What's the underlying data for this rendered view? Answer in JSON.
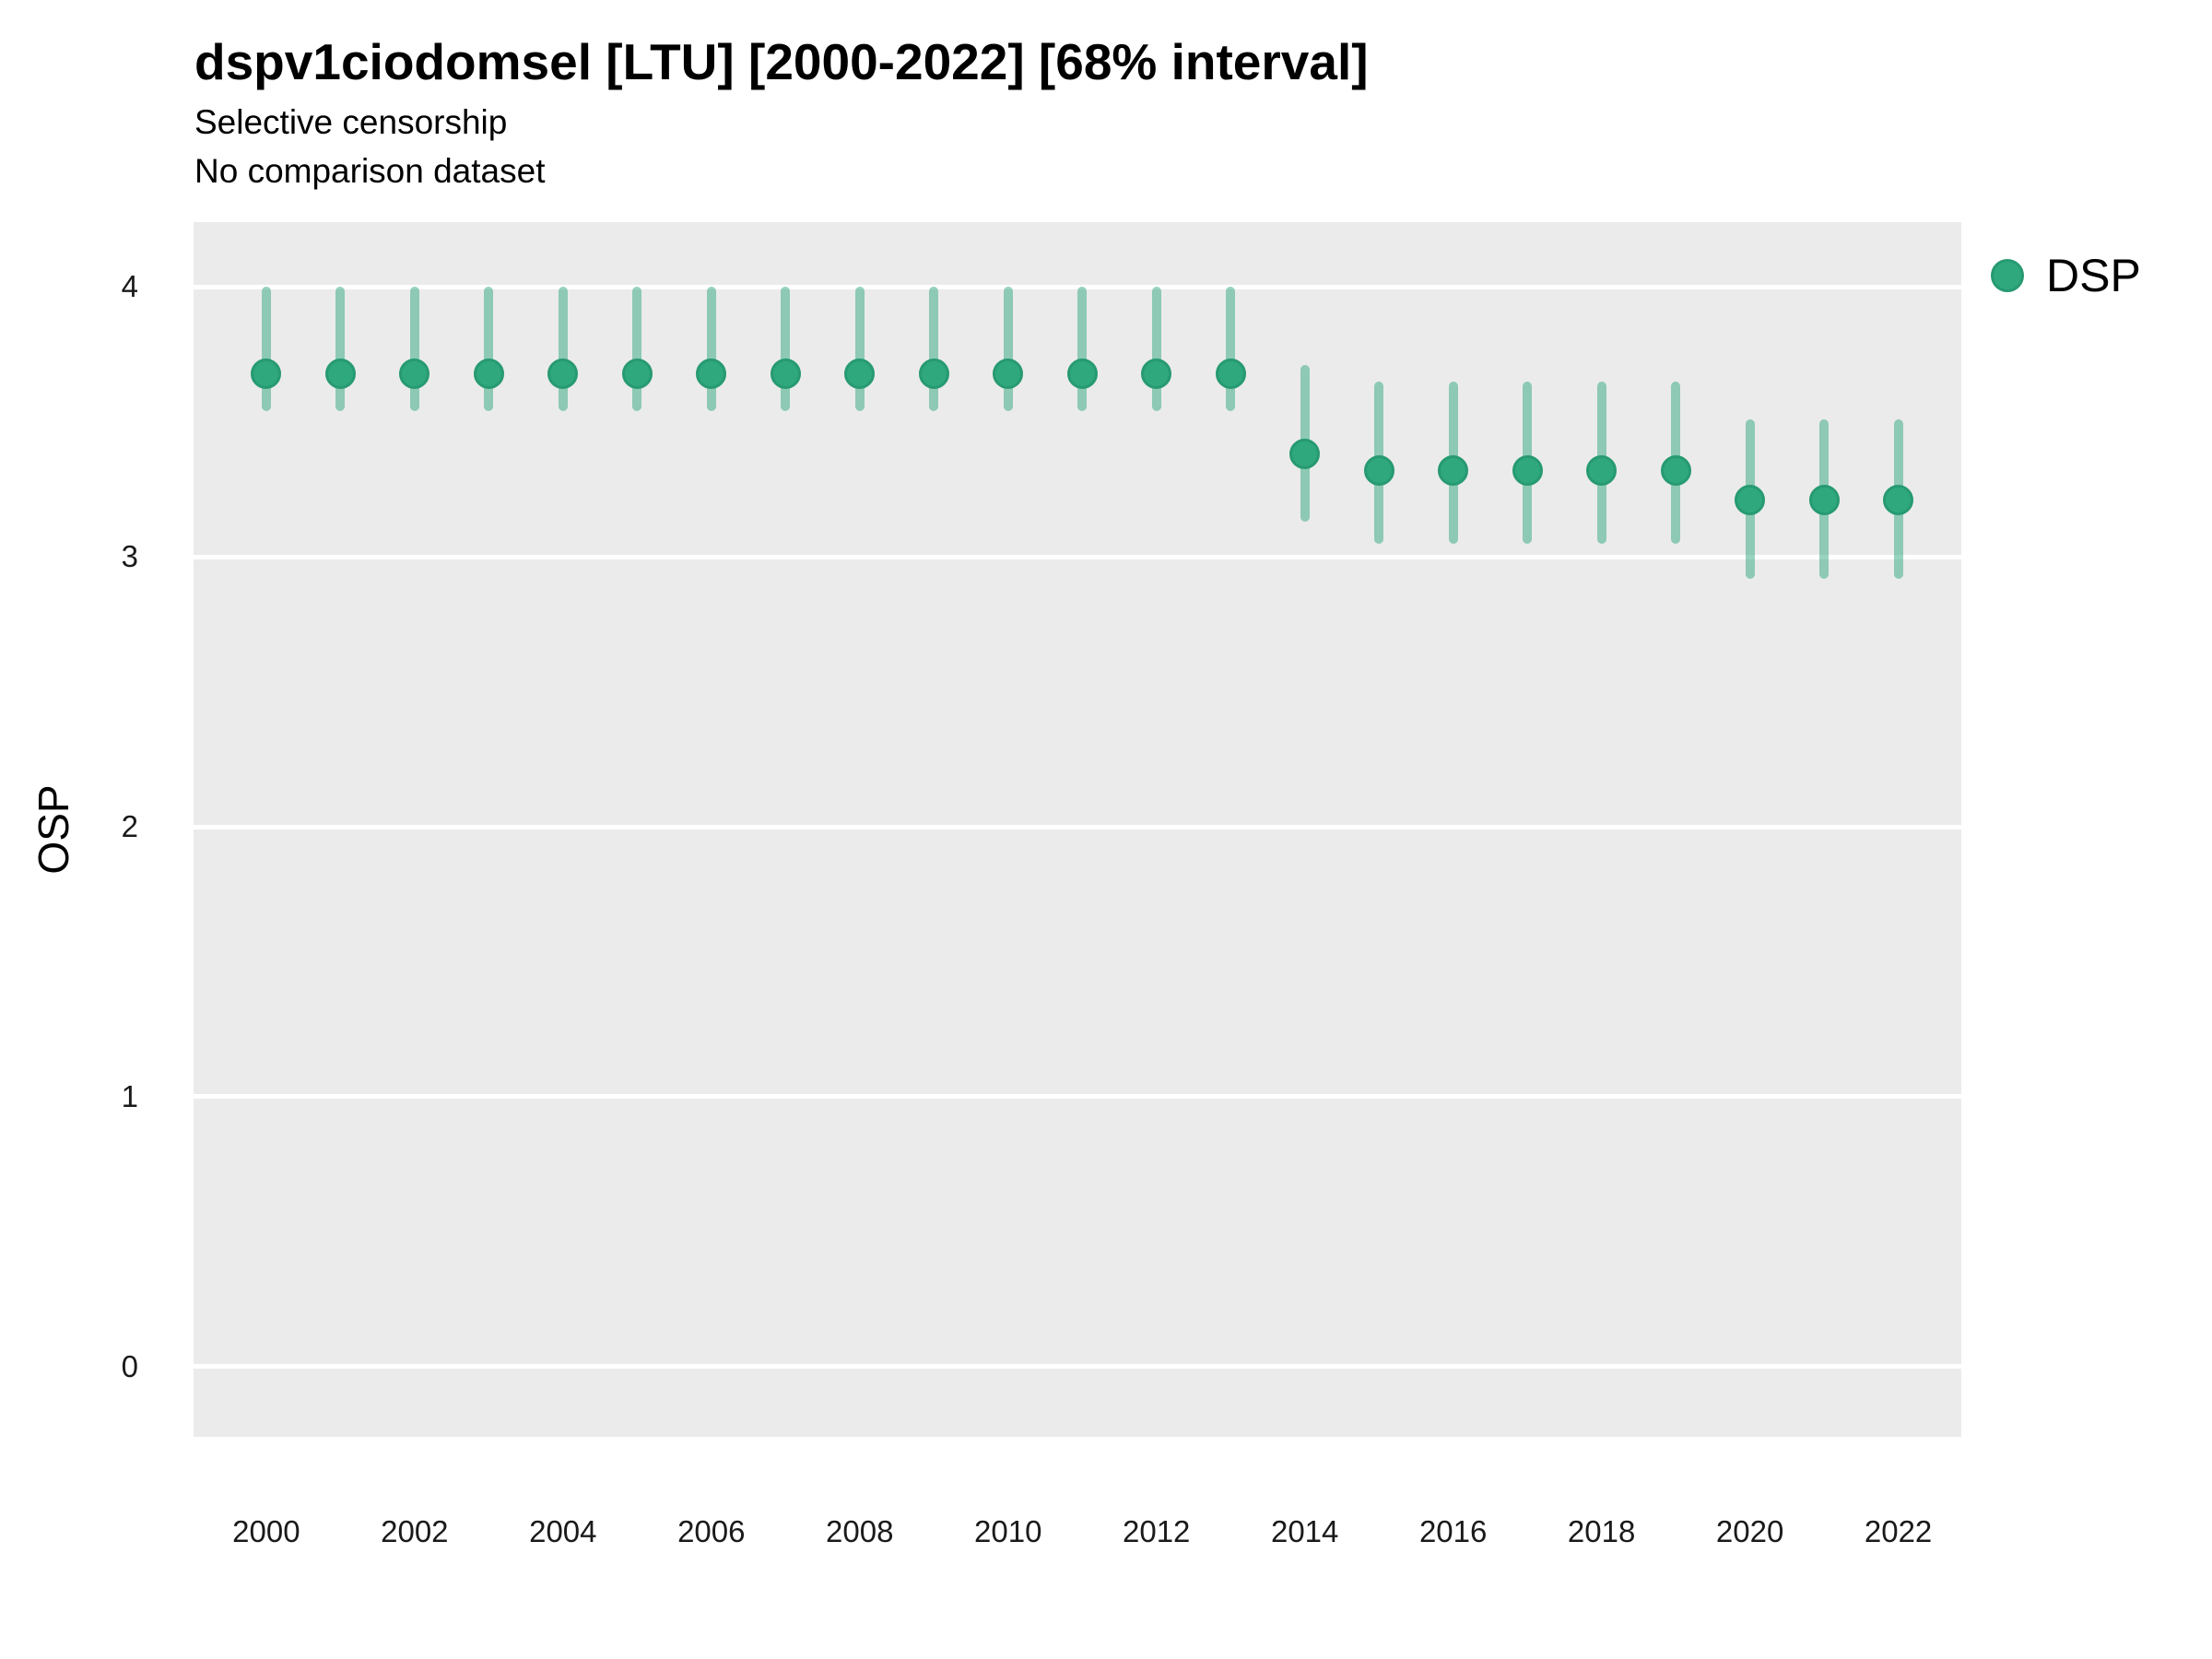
{
  "header": {
    "title": "dspv1ciodomsel [LTU] [2000-2022] [68% interval]",
    "subtitle_line1": "Selective censorship",
    "subtitle_line2": "No comparison dataset"
  },
  "legend": {
    "label": "DSP"
  },
  "colors": {
    "point_fill": "#2fa87e",
    "point_stroke": "#279a71",
    "interval_bar": "rgba(47,168,126,0.5)",
    "panel_background": "#EBEBEB",
    "gridline": "#FFFFFF",
    "tick_text": "#1a1a1a"
  },
  "chart_data": {
    "type": "scatter",
    "title": "dspv1ciodomsel [LTU] [2000-2022] [68% interval]",
    "subtitle": [
      "Selective censorship",
      "No comparison dataset"
    ],
    "xlabel": "",
    "ylabel": "OSP",
    "interval_label": "68% interval",
    "legend_position": "right",
    "grid": "horizontal-major-only",
    "x": [
      2000,
      2001,
      2002,
      2003,
      2004,
      2005,
      2006,
      2007,
      2008,
      2009,
      2010,
      2011,
      2012,
      2013,
      2014,
      2015,
      2016,
      2017,
      2018,
      2019,
      2020,
      2021,
      2022
    ],
    "series": [
      {
        "name": "DSP",
        "values": [
          3.68,
          3.68,
          3.68,
          3.68,
          3.68,
          3.68,
          3.68,
          3.68,
          3.68,
          3.68,
          3.68,
          3.68,
          3.68,
          3.68,
          3.38,
          3.32,
          3.32,
          3.32,
          3.32,
          3.32,
          3.21,
          3.21,
          3.21
        ],
        "lower_68": [
          3.54,
          3.54,
          3.54,
          3.54,
          3.54,
          3.54,
          3.54,
          3.54,
          3.54,
          3.54,
          3.54,
          3.54,
          3.54,
          3.54,
          3.13,
          3.05,
          3.05,
          3.05,
          3.05,
          3.05,
          2.92,
          2.92,
          2.92
        ],
        "upper_68": [
          4.0,
          4.0,
          4.0,
          4.0,
          4.0,
          4.0,
          4.0,
          4.0,
          4.0,
          4.0,
          4.0,
          4.0,
          4.0,
          4.0,
          3.71,
          3.65,
          3.65,
          3.65,
          3.65,
          3.65,
          3.51,
          3.51,
          3.51
        ]
      }
    ],
    "xticks": [
      2000,
      2002,
      2004,
      2006,
      2008,
      2010,
      2012,
      2014,
      2016,
      2018,
      2020,
      2022
    ],
    "yticks": [
      0,
      1,
      2,
      3,
      4
    ],
    "xlim": [
      1999.02,
      2022.85
    ],
    "ylim": [
      -0.26,
      4.24
    ]
  }
}
